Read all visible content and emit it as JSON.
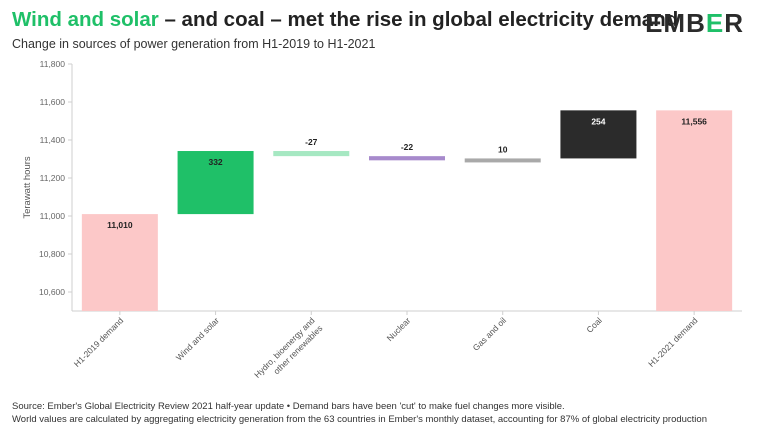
{
  "header": {
    "title_highlight": "Wind and solar",
    "title_rest": " – and coal – met the rise in global electricity demand",
    "subtitle": "Change in sources of power generation from H1-2019 to H1-2021",
    "logo_part1": "EMB",
    "logo_part2": "E",
    "logo_part3": "R"
  },
  "footer": {
    "line1": "Source: Ember's Global Electricity Review 2021 half-year update • Demand bars have been 'cut' to make fuel changes more visible.",
    "line2": "World values are calculated by aggregating electricity generation from the 63 countries in Ember's monthly dataset, accounting for 87% of global electricity production"
  },
  "colors": {
    "accent_green": "#1fc068",
    "logo_dark": "#2b2b2b"
  },
  "chart_data": {
    "type": "bar",
    "subtype": "waterfall",
    "ylabel": "Terawatt hours",
    "ylim": [
      10500,
      11800
    ],
    "yticks": [
      10600,
      10800,
      11000,
      11200,
      11400,
      11600,
      11800
    ],
    "ytick_labels": [
      "10,600",
      "10,800",
      "11,000",
      "11,200",
      "11,400",
      "11,600",
      "11,800"
    ],
    "grid": false,
    "categories": [
      {
        "label": "H1-2019 demand",
        "lines": [
          "H1-2019 demand"
        ],
        "start": 10500,
        "end": 11010,
        "value_label": "11,010",
        "color": "#fcc8c8"
      },
      {
        "label": "Wind and solar",
        "lines": [
          "Wind and solar"
        ],
        "start": 11010,
        "end": 11342,
        "value_label": "332",
        "color": "#1fc068"
      },
      {
        "label": "Hydro, bioenergy and other renewables",
        "lines": [
          "Hydro, bioenergy and",
          "other renewables"
        ],
        "start": 11342,
        "end": 11315,
        "value_label": "-27",
        "color": "#a6e8c2"
      },
      {
        "label": "Nuclear",
        "lines": [
          "Nuclear"
        ],
        "start": 11315,
        "end": 11293,
        "value_label": "-22",
        "color": "#a78acc"
      },
      {
        "label": "Gas and oil",
        "lines": [
          "Gas and oil"
        ],
        "start": 11293,
        "end": 11303,
        "value_label": "10",
        "color": "#a9a9a9"
      },
      {
        "label": "Coal",
        "lines": [
          "Coal"
        ],
        "start": 11303,
        "end": 11556,
        "value_label": "254",
        "color": "#2b2b2b"
      },
      {
        "label": "H1-2021 demand",
        "lines": [
          "H1-2021 demand"
        ],
        "start": 10500,
        "end": 11556,
        "value_label": "11,556",
        "color": "#fcc8c8"
      }
    ]
  }
}
